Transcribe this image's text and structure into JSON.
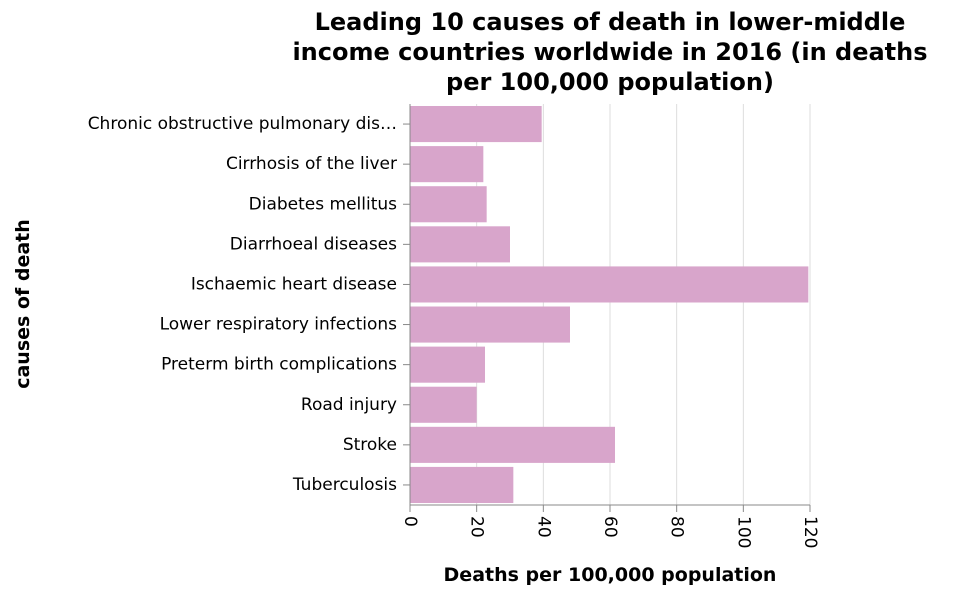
{
  "chart_data": {
    "type": "bar",
    "orientation": "horizontal",
    "title_lines": [
      "Leading 10 causes of death in lower-middle",
      "income countries worldwide in 2016 (in deaths",
      "per 100,000 population)"
    ],
    "xlabel": "Deaths per 100,000 population",
    "ylabel": "causes of death",
    "xlim": [
      0,
      120
    ],
    "xticks": [
      0,
      20,
      40,
      60,
      80,
      100,
      120
    ],
    "grid": true,
    "categories": [
      "Chronic obstructive pulmonary dis…",
      "Cirrhosis of the liver",
      "Diabetes mellitus",
      "Diarrhoeal diseases",
      "Ischaemic heart disease",
      "Lower respiratory infections",
      "Preterm birth complications",
      "Road injury",
      "Stroke",
      "Tuberculosis"
    ],
    "values": [
      39.5,
      22,
      23,
      30,
      119.5,
      48,
      22.5,
      20,
      61.5,
      31
    ],
    "bar_color": "#d8a5cb"
  }
}
